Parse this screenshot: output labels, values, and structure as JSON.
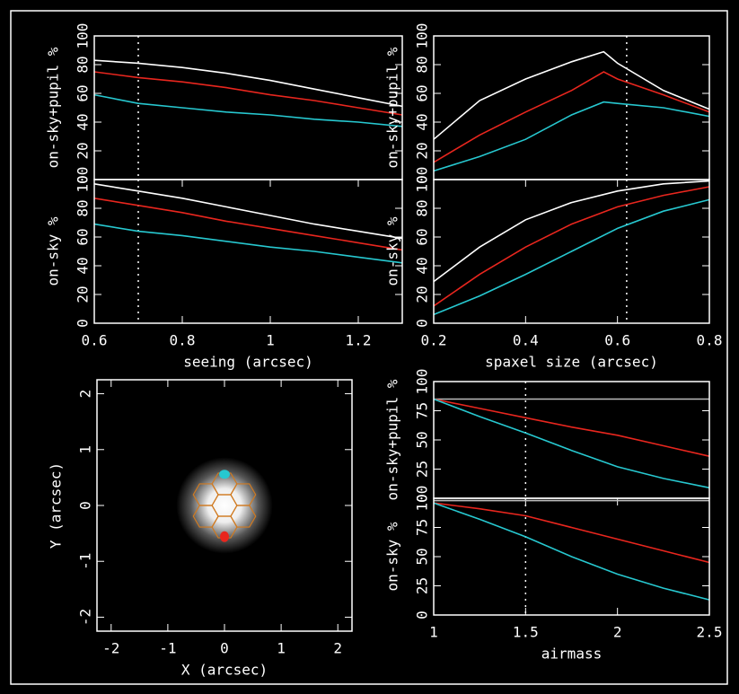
{
  "chart_data": [
    {
      "type": "line",
      "ylabel": "on-sky+pupil %",
      "xlim": [
        0.6,
        1.3
      ],
      "ylim": [
        0,
        100
      ],
      "yticks": [
        0,
        20,
        40,
        60,
        80,
        100
      ],
      "vline": 0.7,
      "x": [
        0.6,
        0.7,
        0.8,
        0.9,
        1.0,
        1.1,
        1.2,
        1.3
      ],
      "series": [
        {
          "color": "#ffffff",
          "values": [
            83,
            81,
            78,
            74,
            69,
            63,
            57,
            51
          ]
        },
        {
          "color": "#e8261e",
          "values": [
            75,
            71,
            68,
            64,
            59,
            55,
            50,
            45
          ]
        },
        {
          "color": "#27c8d0",
          "values": [
            59,
            53,
            50,
            47,
            45,
            42,
            40,
            37
          ]
        }
      ]
    },
    {
      "type": "line",
      "ylabel": "on-sky %",
      "xlabel": "seeing (arcsec)",
      "xlim": [
        0.6,
        1.3
      ],
      "xticks": [
        0.6,
        0.8,
        1,
        1.2
      ],
      "ylim": [
        0,
        100
      ],
      "yticks": [
        0,
        20,
        40,
        60,
        80,
        100
      ],
      "vline": 0.7,
      "x": [
        0.6,
        0.7,
        0.8,
        0.9,
        1.0,
        1.1,
        1.2,
        1.3
      ],
      "series": [
        {
          "color": "#ffffff",
          "values": [
            97,
            92,
            87,
            81,
            75,
            69,
            64,
            59
          ]
        },
        {
          "color": "#e8261e",
          "values": [
            87,
            82,
            77,
            71,
            66,
            61,
            56,
            51
          ]
        },
        {
          "color": "#27c8d0",
          "values": [
            69,
            64,
            61,
            57,
            53,
            50,
            46,
            42
          ]
        }
      ]
    },
    {
      "type": "line",
      "ylabel": "on-sky+pupil %",
      "xlim": [
        0.2,
        0.8
      ],
      "ylim": [
        0,
        100
      ],
      "yticks": [
        0,
        20,
        40,
        60,
        80,
        100
      ],
      "vline": 0.62,
      "x": [
        0.2,
        0.3,
        0.4,
        0.5,
        0.57,
        0.6,
        0.7,
        0.8
      ],
      "series": [
        {
          "color": "#ffffff",
          "values": [
            28,
            55,
            70,
            82,
            89,
            81,
            62,
            49
          ]
        },
        {
          "color": "#e8261e",
          "values": [
            12,
            31,
            47,
            62,
            75,
            70,
            59,
            47
          ]
        },
        {
          "color": "#27c8d0",
          "values": [
            6,
            16,
            28,
            45,
            54,
            53,
            50,
            44
          ]
        }
      ]
    },
    {
      "type": "line",
      "ylabel": "on-sky %",
      "xlabel": "spaxel size (arcsec)",
      "xlim": [
        0.2,
        0.8
      ],
      "xticks": [
        0.2,
        0.4,
        0.6,
        0.8
      ],
      "ylim": [
        0,
        100
      ],
      "yticks": [
        0,
        20,
        40,
        60,
        80,
        100
      ],
      "vline": 0.62,
      "x": [
        0.2,
        0.3,
        0.4,
        0.5,
        0.6,
        0.7,
        0.8
      ],
      "series": [
        {
          "color": "#ffffff",
          "values": [
            29,
            53,
            72,
            84,
            92,
            97,
            99
          ]
        },
        {
          "color": "#e8261e",
          "values": [
            12,
            34,
            53,
            69,
            81,
            89,
            95
          ]
        },
        {
          "color": "#27c8d0",
          "values": [
            6,
            19,
            34,
            50,
            66,
            78,
            86
          ]
        }
      ]
    },
    {
      "type": "image",
      "xlabel": "X (arcsec)",
      "ylabel": "Y (arcsec)",
      "xlim": [
        -2.25,
        2.25
      ],
      "ylim": [
        -2.25,
        2.25
      ],
      "xticks": [
        -2,
        -1,
        0,
        1,
        2
      ],
      "yticks": [
        -2,
        -1,
        0,
        1,
        2
      ]
    },
    {
      "type": "line",
      "ylabel": "on-sky+pupil %",
      "xlim": [
        1,
        2.5
      ],
      "ylim": [
        0,
        100
      ],
      "yticks": [
        0,
        25,
        50,
        75,
        100
      ],
      "vline": 1.5,
      "x": [
        1,
        1.25,
        1.5,
        1.75,
        2,
        2.25,
        2.5
      ],
      "series": [
        {
          "color": "#bbbbbb",
          "values": [
            85,
            85,
            85,
            85,
            85,
            85,
            85
          ]
        },
        {
          "color": "#e8261e",
          "values": [
            85,
            77,
            69,
            61,
            54,
            45,
            36
          ]
        },
        {
          "color": "#27c8d0",
          "values": [
            85,
            70,
            56,
            41,
            27,
            17,
            9
          ]
        }
      ]
    },
    {
      "type": "line",
      "ylabel": "on-sky %",
      "xlabel": "airmass",
      "xlim": [
        1,
        2.5
      ],
      "xticks": [
        1,
        1.5,
        2,
        2.5
      ],
      "ylim": [
        0,
        100
      ],
      "yticks": [
        0,
        25,
        50,
        75,
        100
      ],
      "vline": 1.5,
      "x": [
        1,
        1.25,
        1.5,
        1.75,
        2,
        2.25,
        2.5
      ],
      "series": [
        {
          "color": "#bbbbbb",
          "values": [
            98,
            98,
            98,
            98,
            98,
            98,
            98
          ]
        },
        {
          "color": "#e8261e",
          "values": [
            96,
            91,
            85,
            75,
            65,
            55,
            45
          ]
        },
        {
          "color": "#27c8d0",
          "values": [
            96,
            82,
            67,
            50,
            35,
            23,
            13
          ]
        }
      ]
    }
  ]
}
